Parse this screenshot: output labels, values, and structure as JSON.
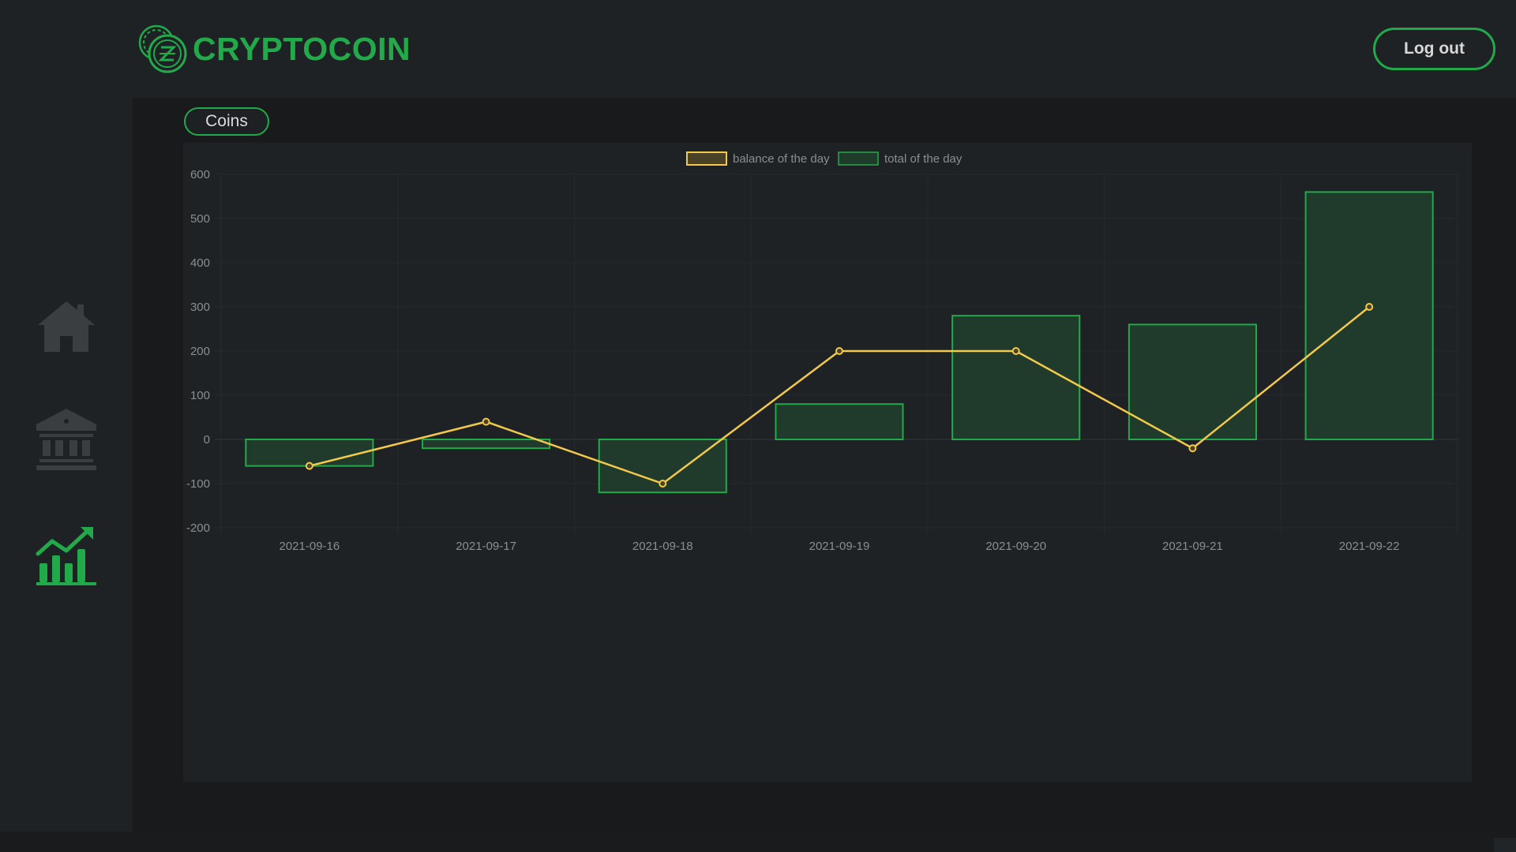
{
  "header": {
    "logo_text": "CRYPTOCOIN",
    "logout_label": "Log out"
  },
  "sidebar": {
    "items": [
      {
        "name": "home",
        "icon": "home-icon",
        "active": false
      },
      {
        "name": "bank",
        "icon": "bank-icon",
        "active": false
      },
      {
        "name": "chart",
        "icon": "chart-trend-icon",
        "active": true
      }
    ]
  },
  "main": {
    "coins_button": "Coins"
  },
  "colors": {
    "accent_green": "#22a94a",
    "line_yellow": "#f2c94c",
    "bar_fill": "#203a2b"
  },
  "chart_data": {
    "type": "bar",
    "categories": [
      "2021-09-16",
      "2021-09-17",
      "2021-09-18",
      "2021-09-19",
      "2021-09-20",
      "2021-09-21",
      "2021-09-22"
    ],
    "series": [
      {
        "name": "balance of the day",
        "type": "line",
        "values": [
          -60,
          40,
          -100,
          200,
          200,
          -20,
          300
        ]
      },
      {
        "name": "total of the day",
        "type": "bar",
        "values": [
          -60,
          -20,
          -120,
          80,
          280,
          260,
          560
        ]
      }
    ],
    "yticks": [
      "600",
      "500",
      "400",
      "300",
      "200",
      "100",
      "0",
      "-100",
      "-200"
    ],
    "ylim": [
      -200,
      600
    ],
    "grid": true,
    "legend": "top-center"
  }
}
